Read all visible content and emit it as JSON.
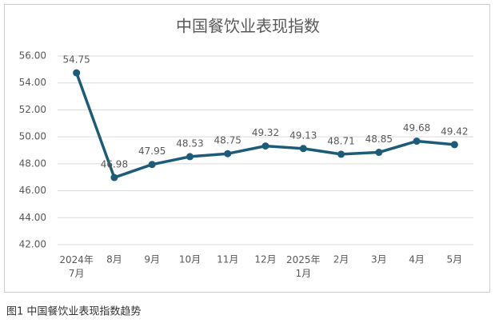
{
  "chart_data": {
    "type": "line",
    "title": "中国餐饮业表现指数",
    "categories": [
      "2024年\n7月",
      "8月",
      "9月",
      "10月",
      "11月",
      "12月",
      "2025年\n1月",
      "2月",
      "3月",
      "4月",
      "5月"
    ],
    "values": [
      54.75,
      46.98,
      47.95,
      48.53,
      48.75,
      49.32,
      49.13,
      48.71,
      48.85,
      49.68,
      49.42
    ],
    "color": "#1d5c78",
    "ylim": [
      42,
      56
    ],
    "yticks": [
      {
        "value": 42,
        "label": "42.00"
      },
      {
        "value": 44,
        "label": "44.00"
      },
      {
        "value": 46,
        "label": "46.00"
      },
      {
        "value": 48,
        "label": "48.00"
      },
      {
        "value": 50,
        "label": "50.00"
      },
      {
        "value": 52,
        "label": "52.00"
      },
      {
        "value": 54,
        "label": "54.00"
      },
      {
        "value": 56,
        "label": "56.00"
      }
    ],
    "grid": true,
    "caption": "图1 中国餐饮业表现指数趋势"
  }
}
